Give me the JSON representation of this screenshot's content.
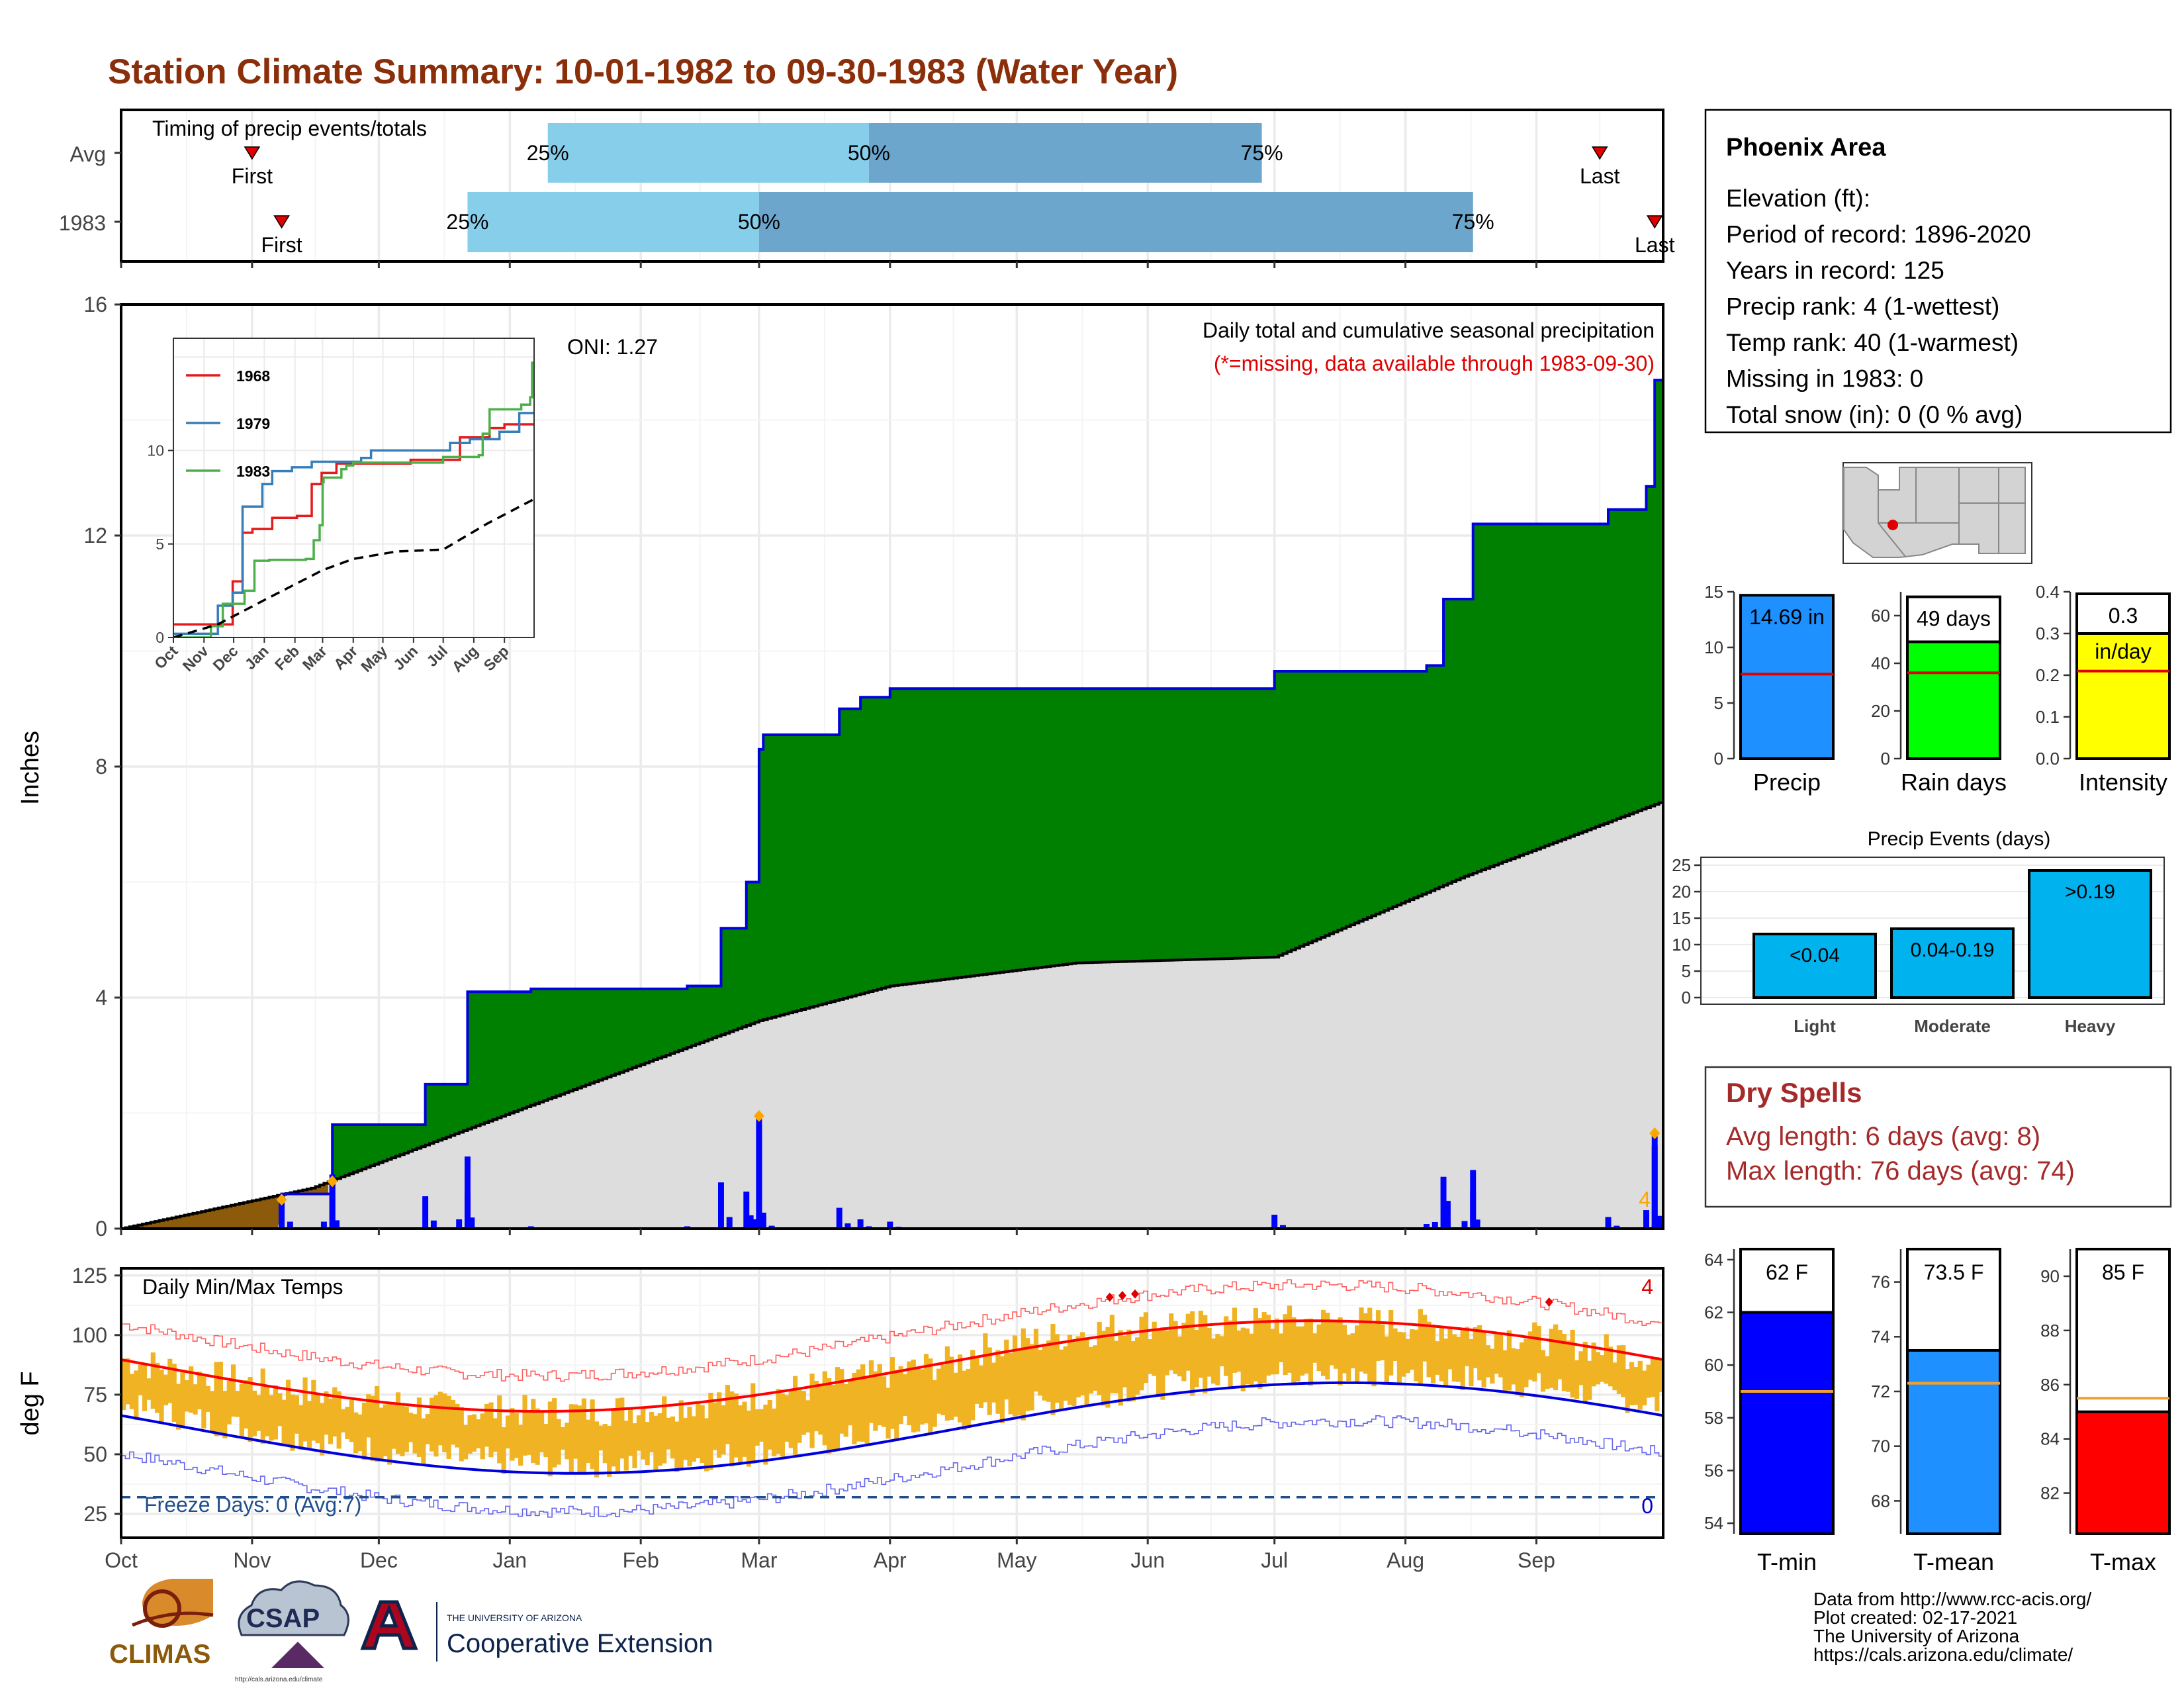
{
  "page_title": "Station Climate Summary: 10-01-1982 to 09-30-1983 (Water Year)",
  "months": [
    "Oct",
    "Nov",
    "Dec",
    "Jan",
    "Feb",
    "Mar",
    "Apr",
    "May",
    "Jun",
    "Jul",
    "Aug",
    "Sep"
  ],
  "timing": {
    "title": "Timing of precip events/totals",
    "rows": [
      {
        "label": "Avg",
        "first_label": "First",
        "last_label": "Last",
        "first": "Nov 1",
        "q25": "Jan 10",
        "q50": "Mar 27",
        "q75": "Jun 28",
        "last": "Sep 16",
        "q25_label": "25%",
        "q50_label": "50%",
        "q75_label": "75%"
      },
      {
        "label": "1983",
        "first_label": "First",
        "last_label": "Last",
        "first": "Nov 8",
        "q25": "Dec 22",
        "q50": "Mar 1",
        "q75": "Aug 17",
        "last": "Sep 29",
        "q25_label": "25%",
        "q50_label": "50%",
        "q75_label": "75%"
      }
    ]
  },
  "precip_panel": {
    "ylabel": "Inches",
    "oni_label": "ONI: 1.27",
    "note1": "Daily total and cumulative seasonal precipitation",
    "note2": "(*=missing, data available through 1983-09-30)",
    "missing_count": "4",
    "yticks": [
      "0",
      "4",
      "8",
      "12",
      "16"
    ],
    "ylim": [
      0,
      16
    ]
  },
  "inset": {
    "legend": [
      "1968",
      "1979",
      "1983"
    ],
    "yticks": [
      "0",
      "5",
      "10"
    ],
    "ylim": [
      0,
      16
    ]
  },
  "temp_panel": {
    "ylabel": "deg F",
    "title": "Daily Min/Max Temps",
    "freeze_label": "Freeze Days: 0 (Avg:7)",
    "count_max": "4",
    "count_min": "0",
    "yticks": [
      "25",
      "50",
      "75",
      "100",
      "125"
    ],
    "ylim": [
      15,
      128
    ],
    "freeze_line": 32
  },
  "station": {
    "name": "Phoenix Area",
    "lines": [
      "Elevation (ft):",
      "Period of record: 1896-2020",
      "Years in record: 125",
      "Precip rank: 4 (1-wettest)",
      "Temp rank: 40 (1-warmest)",
      "Missing in 1983: 0",
      "Total snow (in): 0 (0 % avg)"
    ]
  },
  "summary_bars": [
    {
      "name": "Precip",
      "value": 14.69,
      "avg": 7.6,
      "label": "14.69 in",
      "ylim": [
        0,
        15
      ],
      "ticks": [
        "0",
        "5",
        "10",
        "15"
      ],
      "color": "#1E90FF"
    },
    {
      "name": "Rain days",
      "value": 49,
      "avg": 36,
      "label": "49 days",
      "ylim": [
        0,
        70
      ],
      "ticks": [
        "0",
        "20",
        "40",
        "60"
      ],
      "color": "#00FF00"
    },
    {
      "name": "Intensity",
      "value": 0.3,
      "avg": 0.21,
      "label": "0.3",
      "label2": "in/day",
      "ylim": [
        0,
        0.4
      ],
      "ticks": [
        "0.0",
        "0.1",
        "0.2",
        "0.3",
        "0.4"
      ],
      "color": "#FFFF00"
    }
  ],
  "precip_events": {
    "title": "Precip Events (days)",
    "categories": [
      "Light",
      "Moderate",
      "Heavy"
    ],
    "values": [
      12,
      13,
      24
    ],
    "labels": [
      "<0.04",
      "0.04-0.19",
      ">0.19"
    ],
    "ylim": [
      0,
      25
    ],
    "ticks": [
      "0",
      "5",
      "10",
      "15",
      "20",
      "25"
    ]
  },
  "dry_spells": {
    "title": "Dry Spells",
    "avg_line": "Avg length: 6 days (avg: 8)",
    "max_line": "Max length: 76 days (avg: 74)"
  },
  "temp_bars": [
    {
      "name": "T-min",
      "value": 62,
      "avg": 59,
      "label": "62 F",
      "ylim": [
        53.6,
        64.4
      ],
      "ticks": [
        "54",
        "56",
        "58",
        "60",
        "62",
        "64"
      ],
      "color": "#0000FF"
    },
    {
      "name": "T-mean",
      "value": 73.5,
      "avg": 72.3,
      "label": "73.5 F",
      "ylim": [
        66.8,
        77.2
      ],
      "ticks": [
        "68",
        "70",
        "72",
        "74",
        "76"
      ],
      "color": "#1E90FF"
    },
    {
      "name": "T-max",
      "value": 85,
      "avg": 85.5,
      "label": "85 F",
      "ylim": [
        80.5,
        91
      ],
      "ticks": [
        "82",
        "84",
        "86",
        "88",
        "90"
      ],
      "color": "#FF0000"
    }
  ],
  "credits": [
    "Data from http://www.rcc-acis.org/",
    "Plot created: 02-17-2021",
    "The University of Arizona",
    "https://cals.arizona.edu/climate/"
  ],
  "logos": {
    "climas": "CLIMAS",
    "csap": "CSAP",
    "csap_url": "http://cals.arizona.edu/climate",
    "ua_small": "THE UNIVERSITY OF ARIZONA",
    "coop": "Cooperative Extension"
  },
  "chart_data": {
    "type": "area",
    "series": [
      {
        "name": "cumulative",
        "x": [
          "10-01",
          "11-08",
          "11-20",
          "12-12",
          "12-22",
          "01-06",
          "02-12",
          "02-20",
          "02-26",
          "03-01",
          "03-02",
          "03-20",
          "03-25",
          "04-01",
          "05-04",
          "07-01",
          "08-06",
          "08-10",
          "08-17",
          "09-18",
          "09-27",
          "09-29",
          "09-30"
        ],
        "values": [
          0,
          0.6,
          1.8,
          2.5,
          4.1,
          4.15,
          4.2,
          5.2,
          6.0,
          8.3,
          8.55,
          9.0,
          9.2,
          9.35,
          9.35,
          9.65,
          9.75,
          10.9,
          12.2,
          12.45,
          12.85,
          14.69,
          14.69
        ]
      },
      {
        "name": "average cumulative",
        "x": [
          "10-01",
          "11-15",
          "01-01",
          "03-01",
          "04-01",
          "05-15",
          "07-01",
          "08-15",
          "09-30"
        ],
        "values": [
          0,
          0.7,
          2.0,
          3.6,
          4.2,
          4.6,
          4.7,
          6.1,
          7.4
        ]
      }
    ],
    "daily_big_events": [
      {
        "date": "03-01",
        "value": 1.9
      },
      {
        "date": "09-29",
        "value": 1.6
      },
      {
        "date": "11-20",
        "value": 0.82
      },
      {
        "date": "08-17",
        "value": 0.65
      },
      {
        "date": "08-11",
        "value": 0.48
      },
      {
        "date": "12-22",
        "value": 0.6
      }
    ]
  }
}
